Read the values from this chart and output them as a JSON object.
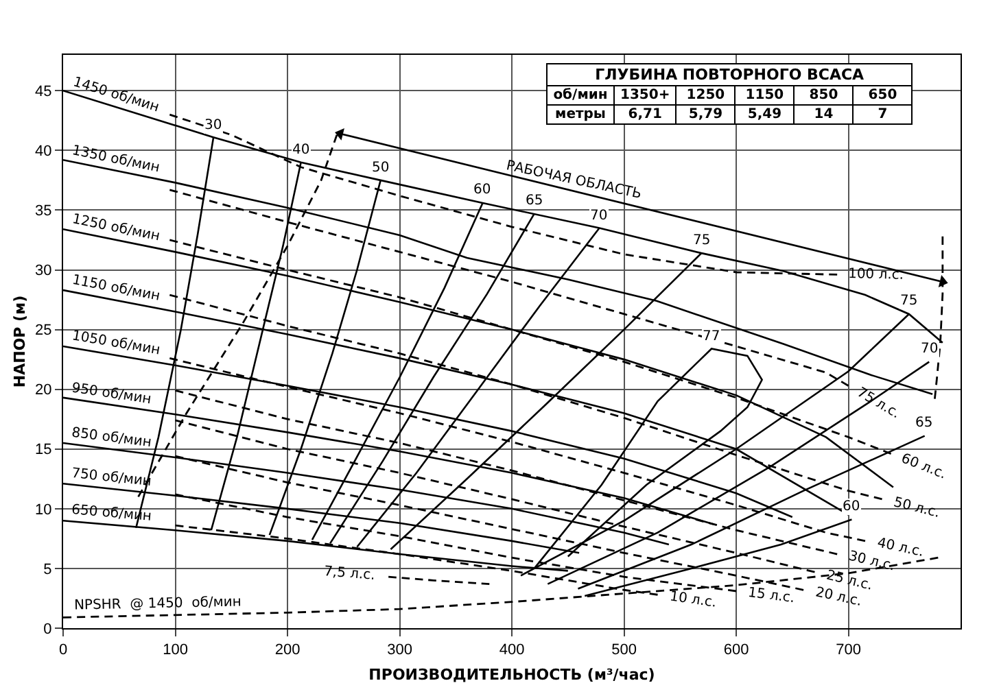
{
  "chart_data": {
    "type": "line",
    "xlabel": "ПРОИЗВОДИТЕЛЬНОСТЬ (м³/час)",
    "ylabel": "НАПОР (м)",
    "xlim": [
      0,
      800
    ],
    "ylim": [
      0,
      48
    ],
    "xticks": [
      0,
      100,
      200,
      300,
      400,
      500,
      600,
      700
    ],
    "yticks": [
      0,
      5,
      10,
      15,
      20,
      25,
      30,
      35,
      40,
      45
    ],
    "grid": true,
    "annotations": [
      "ГЛУБИНА ПОВТОРНОГО ВСАСА",
      "об/мин",
      "1350+",
      "1250",
      "1150",
      "850",
      "650",
      "метры",
      "6,71",
      "5,79",
      "5,49",
      "14",
      "7",
      {
        "text": "1450 об/мин",
        "x": 0,
        "y": 45
      },
      {
        "text": "1350 об/мин",
        "x": 0,
        "y": 39.2
      },
      {
        "text": "1250 об/мин",
        "x": 0,
        "y": 33.4
      },
      {
        "text": "1150 об/мин",
        "x": 0,
        "y": 28.3
      },
      {
        "text": "1050 об/мин",
        "x": 0,
        "y": 23.6
      },
      {
        "text": "950 об/мин",
        "x": 0,
        "y": 19.3
      },
      {
        "text": "850 об/мин",
        "x": 0,
        "y": 15.5
      },
      {
        "text": "750 об/мин",
        "x": 0,
        "y": 12.1
      },
      {
        "text": "650 об/мин",
        "x": 0,
        "y": 9
      },
      {
        "text": "30",
        "x": 134,
        "y": 41.1
      },
      {
        "text": "40",
        "x": 212,
        "y": 39
      },
      {
        "text": "50",
        "x": 283,
        "y": 37.5
      },
      {
        "text": "60",
        "x": 374,
        "y": 35.6
      },
      {
        "text": "65",
        "x": 420,
        "y": 34.7
      },
      {
        "text": "70",
        "x": 478,
        "y": 33.5
      },
      {
        "text": "75",
        "x": 569,
        "y": 31.4
      },
      {
        "text": "77",
        "x": 578,
        "y": 23.4
      },
      {
        "text": "75",
        "x": 754,
        "y": 26.3
      },
      {
        "text": "70",
        "x": 772,
        "y": 22.3
      },
      {
        "text": "65",
        "x": 768,
        "y": 16.1
      },
      {
        "text": "60",
        "x": 703,
        "y": 9.1
      },
      {
        "text": "100 л.с.",
        "x": 690,
        "y": 29.6
      },
      {
        "text": "75 л.с.",
        "x": 700,
        "y": 20.3
      },
      {
        "text": "60 л.с.",
        "x": 738,
        "y": 14.6
      },
      {
        "text": "50 л.с.",
        "x": 730,
        "y": 10.8
      },
      {
        "text": "40 л.с.",
        "x": 715,
        "y": 7.3
      },
      {
        "text": "30 л.с.",
        "x": 690,
        "y": 6.2
      },
      {
        "text": "25 л.с.",
        "x": 670,
        "y": 4.7
      },
      {
        "text": "20 л.с.",
        "x": 660,
        "y": 3.2
      },
      {
        "text": "15 л.с.",
        "x": 600,
        "y": 3.1
      },
      {
        "text": "10 л.с.",
        "x": 530,
        "y": 2.8
      },
      {
        "text": "7,5 л.с.",
        "x": 290,
        "y": 4.3
      },
      {
        "text": "РАБОЧАЯ ОБЛАСТЬ",
        "x": 453,
        "y": 36.64
      },
      {
        "text": "NPSHR  @ 1450  об/мин",
        "x": 0,
        "y": 0.9
      }
    ],
    "series": [
      {
        "color": "#000000",
        "line_style": "solid",
        "x": [
          0,
          134,
          212,
          283,
          374,
          478,
          569,
          642,
          715,
          754,
          784
        ],
        "values": [
          45,
          41.1,
          39,
          37.5,
          35.6,
          33.5,
          31.4,
          29.9,
          27.9,
          26.3,
          23.9
        ]
      },
      {
        "color": "#000000",
        "line_style": "solid",
        "x": [
          0,
          100,
          200,
          300,
          360,
          450,
          529,
          642,
          720,
          775
        ],
        "values": [
          39.2,
          37.3,
          35.2,
          32.9,
          31,
          29.2,
          27.4,
          23.8,
          21.2,
          19.6
        ]
      },
      {
        "color": "#000000",
        "line_style": "solid",
        "x": [
          0,
          100,
          200,
          300,
          400,
          500,
          600,
          680,
          740
        ],
        "values": [
          33.4,
          31.5,
          29.5,
          27.3,
          25,
          22.5,
          19.5,
          16,
          11.8
        ]
      },
      {
        "color": "#000000",
        "line_style": "solid",
        "x": [
          0,
          100,
          200,
          300,
          400,
          500,
          600,
          700
        ],
        "values": [
          28.3,
          26.5,
          24.6,
          22.6,
          20.4,
          18,
          15,
          9.5
        ]
      },
      {
        "color": "#000000",
        "line_style": "solid",
        "x": [
          0,
          100,
          200,
          300,
          400,
          500,
          600,
          650
        ],
        "values": [
          23.6,
          22,
          20.3,
          18.5,
          16.5,
          14.2,
          11.3,
          9.3
        ]
      },
      {
        "color": "#000000",
        "line_style": "solid",
        "x": [
          0,
          100,
          200,
          300,
          400,
          500,
          580
        ],
        "values": [
          19.3,
          17.9,
          16.4,
          14.8,
          13,
          10.9,
          8.7
        ]
      },
      {
        "color": "#000000",
        "line_style": "solid",
        "x": [
          0,
          100,
          200,
          300,
          400,
          500,
          540
        ],
        "values": [
          15.5,
          14.3,
          13,
          11.6,
          10,
          8,
          7
        ]
      },
      {
        "color": "#000000",
        "line_style": "solid",
        "x": [
          0,
          100,
          200,
          300,
          400,
          460
        ],
        "values": [
          12.1,
          11.1,
          10,
          8.8,
          7.3,
          6.3
        ]
      },
      {
        "color": "#000000",
        "line_style": "solid",
        "x": [
          0,
          100,
          200,
          300,
          400,
          450
        ],
        "values": [
          9,
          8.2,
          7.3,
          6.2,
          5.2,
          4.8
        ]
      },
      {
        "color": "#000000",
        "line_style": "solid",
        "x": [
          65,
          85,
          105,
          120,
          134
        ],
        "values": [
          8.4,
          16,
          25,
          33,
          41.1
        ]
      },
      {
        "color": "#000000",
        "line_style": "solid",
        "x": [
          132,
          155,
          178,
          196,
          212
        ],
        "values": [
          8.2,
          16,
          25,
          32,
          39
        ]
      },
      {
        "color": "#000000",
        "line_style": "solid",
        "x": [
          184,
          212,
          240,
          262,
          283
        ],
        "values": [
          7.8,
          15,
          23,
          30,
          37.5
        ]
      },
      {
        "color": "#000000",
        "line_style": "solid",
        "x": [
          222,
          260,
          300,
          340,
          374
        ],
        "values": [
          7.4,
          14,
          21,
          28.5,
          35.6
        ]
      },
      {
        "color": "#000000",
        "line_style": "solid",
        "x": [
          238,
          285,
          330,
          378,
          420
        ],
        "values": [
          7.1,
          14,
          21,
          28,
          34.7
        ]
      },
      {
        "color": "#000000",
        "line_style": "solid",
        "x": [
          262,
          315,
          370,
          425,
          478
        ],
        "values": [
          6.8,
          13,
          20,
          27,
          33.5
        ]
      },
      {
        "color": "#000000",
        "line_style": "solid",
        "x": [
          292,
          360,
          430,
          500,
          569
        ],
        "values": [
          6.6,
          12.5,
          18.7,
          25,
          31.4
        ]
      },
      {
        "color": "#000000",
        "line_style": "solid",
        "x": [
          420,
          480,
          530,
          578,
          610,
          623,
          610,
          586,
          520,
          450
        ],
        "values": [
          5,
          12,
          19,
          23.4,
          22.8,
          20.8,
          18.5,
          16.5,
          12,
          6
        ]
      },
      {
        "color": "#000000",
        "line_style": "solid",
        "x": [
          408,
          500,
          600,
          700,
          754
        ],
        "values": [
          4.4,
          9,
          15,
          21.5,
          26.3
        ]
      },
      {
        "color": "#000000",
        "line_style": "solid",
        "x": [
          432,
          530,
          630,
          720,
          772
        ],
        "values": [
          3.7,
          8,
          13.5,
          19,
          22.3
        ]
      },
      {
        "color": "#000000",
        "line_style": "solid",
        "x": [
          459,
          560,
          660,
          768
        ],
        "values": [
          3.3,
          7,
          11.5,
          16.1
        ]
      },
      {
        "color": "#000000",
        "line_style": "solid",
        "x": [
          465,
          560,
          640,
          703
        ],
        "values": [
          2.7,
          5,
          7,
          9.1
        ]
      },
      {
        "color": "#000000",
        "line_style": "dashed",
        "x": [
          95,
          150,
          212,
          300,
          400,
          500,
          600,
          690
        ],
        "values": [
          43,
          41.3,
          38.6,
          36.2,
          33.6,
          31.3,
          29.8,
          29.6
        ]
      },
      {
        "color": "#000000",
        "line_style": "dashed",
        "x": [
          95,
          200,
          300,
          400,
          500,
          600,
          680,
          700
        ],
        "values": [
          36.7,
          34,
          31.5,
          29,
          26.3,
          23.6,
          21.4,
          20.3
        ]
      },
      {
        "color": "#000000",
        "line_style": "dashed",
        "x": [
          95,
          200,
          300,
          400,
          500,
          600,
          700,
          738
        ],
        "values": [
          32.5,
          30,
          27.7,
          25,
          22.3,
          19.3,
          16,
          14.6
        ]
      },
      {
        "color": "#000000",
        "line_style": "dashed",
        "x": [
          95,
          200,
          300,
          400,
          500,
          600,
          700,
          730
        ],
        "values": [
          27.9,
          25.3,
          23,
          20.4,
          17.6,
          14.5,
          11.5,
          10.8
        ]
      },
      {
        "color": "#000000",
        "line_style": "dashed",
        "x": [
          95,
          200,
          300,
          400,
          500,
          600,
          680,
          715
        ],
        "values": [
          22.6,
          20.2,
          18,
          15.6,
          13,
          10.3,
          8,
          7.3
        ]
      },
      {
        "color": "#000000",
        "line_style": "dashed",
        "x": [
          100,
          200,
          300,
          400,
          500,
          600,
          690
        ],
        "values": [
          19.9,
          17.5,
          15.5,
          13.2,
          10.7,
          8.2,
          6.2
        ]
      },
      {
        "color": "#000000",
        "line_style": "dashed",
        "x": [
          100,
          200,
          300,
          400,
          500,
          600,
          670
        ],
        "values": [
          17.4,
          15,
          13,
          10.8,
          8.5,
          6.3,
          4.7
        ]
      },
      {
        "color": "#000000",
        "line_style": "dashed",
        "x": [
          100,
          200,
          300,
          400,
          500,
          600,
          660
        ],
        "values": [
          14.4,
          12.2,
          10.3,
          8.3,
          6.3,
          4.4,
          3.2
        ]
      },
      {
        "color": "#000000",
        "line_style": "dashed",
        "x": [
          100,
          200,
          300,
          400,
          500,
          600
        ],
        "values": [
          11.2,
          9.3,
          7.7,
          5.9,
          4.3,
          3.1
        ]
      },
      {
        "color": "#000000",
        "line_style": "dashed",
        "x": [
          100,
          200,
          300,
          400,
          500,
          530
        ],
        "values": [
          8.6,
          7.5,
          6.2,
          4.8,
          3.2,
          2.8
        ]
      },
      {
        "color": "#000000",
        "line_style": "dashed",
        "x": [
          290,
          330,
          380
        ],
        "values": [
          4.3,
          4.0,
          3.7
        ]
      },
      {
        "color": "#000000",
        "line_style": "dashed",
        "x": [
          0,
          100,
          200,
          300,
          400,
          500,
          600,
          700,
          780
        ],
        "values": [
          0.9,
          1.1,
          1.3,
          1.6,
          2.2,
          2.9,
          3.6,
          4.6,
          5.9
        ]
      },
      {
        "color": "#000000",
        "line_style": "dashed",
        "x": [
          67,
          110,
          160,
          200,
          230,
          244
        ],
        "values": [
          11,
          18,
          25.5,
          32,
          37.5,
          41.3
        ]
      },
      {
        "color": "#000000",
        "line_style": "dashed",
        "x": [
          784,
          784,
          782,
          779,
          777
        ],
        "values": [
          32.8,
          28,
          24,
          21,
          19.2
        ]
      },
      {
        "color": "#000000",
        "line_style": "solid",
        "marker": "triangle",
        "x": [
          247,
          784
        ],
        "values": [
          41.4,
          29
        ]
      }
    ]
  }
}
